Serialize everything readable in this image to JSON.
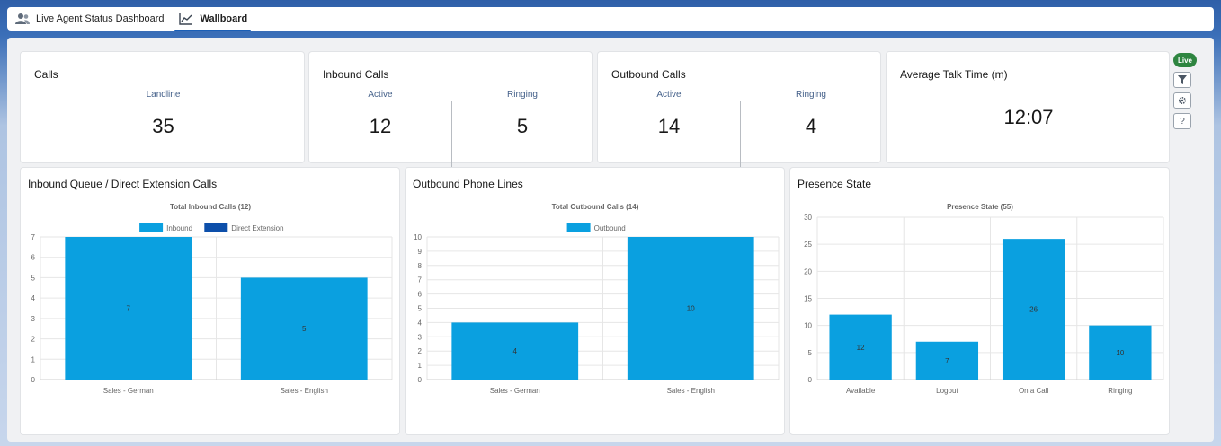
{
  "tabs": [
    {
      "label": "Live Agent Status Dashboard",
      "icon": "users-icon",
      "active": false
    },
    {
      "label": "Wallboard",
      "icon": "line-chart-icon",
      "active": true
    }
  ],
  "tiles": {
    "calls": {
      "title": "Calls",
      "landline_label": "Landline",
      "landline_value": "35"
    },
    "inbound": {
      "title": "Inbound Calls",
      "active_label": "Active",
      "active_value": "12",
      "ringing_label": "Ringing",
      "ringing_value": "5"
    },
    "outbound": {
      "title": "Outbound Calls",
      "active_label": "Active",
      "active_value": "14",
      "ringing_label": "Ringing",
      "ringing_value": "4"
    },
    "talk_time": {
      "title": "Average Talk Time (m)",
      "value": "12:07"
    }
  },
  "side_controls": {
    "live_label": "Live",
    "icons": [
      "filter-icon",
      "gear-icon",
      "help-icon"
    ],
    "help_glyph": "?"
  },
  "charts": {
    "inbound": {
      "panel_title": "Inbound Queue / Direct Extension Calls"
    },
    "outbound": {
      "panel_title": "Outbound Phone Lines"
    },
    "presence": {
      "panel_title": "Presence State"
    }
  },
  "colors": {
    "bar_primary": "#0aa0e0",
    "bar_secondary": "#0d4faa",
    "live_badge": "#2e8540",
    "label_blue": "#45618a"
  },
  "chart_data": [
    {
      "type": "bar",
      "title": "Total Inbound Calls (12)",
      "categories": [
        "Sales - German",
        "Sales - English"
      ],
      "series": [
        {
          "name": "Inbound",
          "values": [
            7,
            5
          ]
        },
        {
          "name": "Direct Extension",
          "values": [
            0,
            0
          ]
        }
      ],
      "ylim": [
        0,
        7
      ],
      "yticks": [
        0,
        1,
        2,
        3,
        4,
        5,
        6,
        7
      ],
      "legend": "top-center",
      "grid": true
    },
    {
      "type": "bar",
      "title": "Total Outbound Calls (14)",
      "categories": [
        "Sales - German",
        "Sales - English"
      ],
      "series": [
        {
          "name": "Outbound",
          "values": [
            4,
            10
          ]
        }
      ],
      "ylim": [
        0,
        10
      ],
      "yticks": [
        0,
        1,
        2,
        3,
        4,
        5,
        6,
        7,
        8,
        9,
        10
      ],
      "legend": "top-center",
      "grid": true
    },
    {
      "type": "bar",
      "title": "Presence State (55)",
      "categories": [
        "Available",
        "Logout",
        "On a Call",
        "Ringing"
      ],
      "series": [
        {
          "values": [
            12,
            7,
            26,
            10
          ]
        }
      ],
      "ylim": [
        0,
        30
      ],
      "yticks": [
        0,
        5,
        10,
        15,
        20,
        25,
        30
      ],
      "legend": "none",
      "grid": true
    }
  ]
}
